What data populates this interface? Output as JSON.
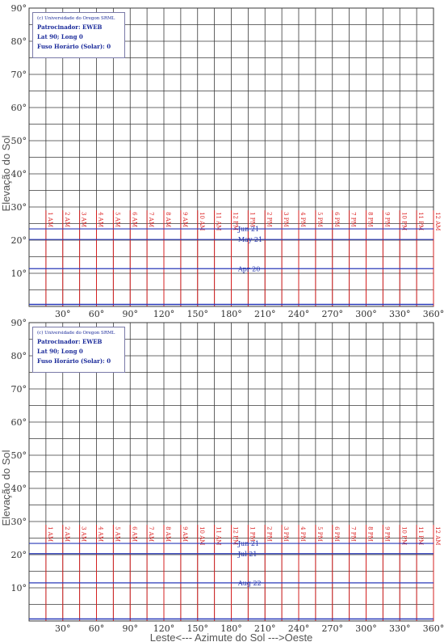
{
  "colors": {
    "grid": "#3a3a3a",
    "hour_line": "#d42020",
    "path_line": "#2a3ab8",
    "info_text": "#1a2a9a"
  },
  "chart_data": [
    {
      "type": "line",
      "info": {
        "copyright": "(c) Universidade do Oregon SRML",
        "sponsor": "Patrocinador: EWEB",
        "location": "Lat 90; Long 0",
        "timezone": "Fuso Horário (Solar): 0"
      },
      "ylabel": "Elevação do Sol",
      "xlabel": "",
      "xlim": [
        0,
        360
      ],
      "ylim": [
        0,
        90
      ],
      "x_ticks": [
        "30°",
        "60°",
        "90°",
        "120°",
        "150°",
        "180°",
        "210°",
        "240°",
        "270°",
        "300°",
        "330°",
        "360°"
      ],
      "y_ticks": [
        "10°",
        "20°",
        "30°",
        "40°",
        "50°",
        "60°",
        "70°",
        "80°",
        "90°"
      ],
      "hour_labels": [
        "1 AM",
        "2 AM",
        "3 AM",
        "4 AM",
        "5 AM",
        "6 AM",
        "7 AM",
        "8 AM",
        "9 AM",
        "10 AM",
        "11 AM",
        "12 PM",
        "1 PM",
        "2 PM",
        "3 PM",
        "4 PM",
        "5 PM",
        "6 PM",
        "7 PM",
        "8 PM",
        "9 PM",
        "10 PM",
        "11 PM",
        "12 AM"
      ],
      "hour_azimuths": [
        15,
        30,
        45,
        60,
        75,
        90,
        105,
        120,
        135,
        150,
        165,
        180,
        195,
        210,
        225,
        240,
        255,
        270,
        285,
        300,
        315,
        330,
        345,
        360
      ],
      "series": [
        {
          "name": "Jun 21",
          "elevation": 23.4
        },
        {
          "name": "May 21",
          "elevation": 20.2
        },
        {
          "name": "Apr 20",
          "elevation": 11.4
        }
      ]
    },
    {
      "type": "line",
      "info": {
        "copyright": "(c) Universidade do Oregon SRML",
        "sponsor": "Patrocinador: EWEB",
        "location": "Lat 90; Long 0",
        "timezone": "Fuso Horário (Solar): 0"
      },
      "ylabel": "Elevação do Sol",
      "xlabel": "Leste<--- Azimute do Sol --->Oeste",
      "xlim": [
        0,
        360
      ],
      "ylim": [
        0,
        90
      ],
      "x_ticks": [
        "30°",
        "60°",
        "90°",
        "120°",
        "150°",
        "180°",
        "210°",
        "240°",
        "270°",
        "300°",
        "330°",
        "360°"
      ],
      "y_ticks": [
        "10°",
        "20°",
        "30°",
        "40°",
        "50°",
        "60°",
        "70°",
        "80°",
        "90°"
      ],
      "hour_labels": [
        "1 AM",
        "2 AM",
        "3 AM",
        "4 AM",
        "5 AM",
        "6 AM",
        "7 AM",
        "8 AM",
        "9 AM",
        "10 AM",
        "11 AM",
        "12 PM",
        "1 PM",
        "2 PM",
        "3 PM",
        "4 PM",
        "5 PM",
        "6 PM",
        "7 PM",
        "8 PM",
        "9 PM",
        "10 PM",
        "11 PM",
        "12 AM"
      ],
      "hour_azimuths": [
        15,
        30,
        45,
        60,
        75,
        90,
        105,
        120,
        135,
        150,
        165,
        180,
        195,
        210,
        225,
        240,
        255,
        270,
        285,
        300,
        315,
        330,
        345,
        360
      ],
      "series": [
        {
          "name": "Jun 21",
          "elevation": 23.4
        },
        {
          "name": "Jul 21",
          "elevation": 20.3
        },
        {
          "name": "Aug 22",
          "elevation": 11.5
        }
      ]
    }
  ]
}
